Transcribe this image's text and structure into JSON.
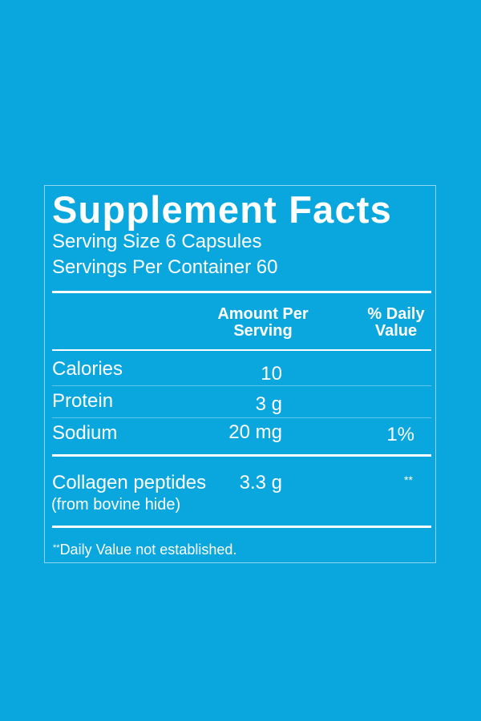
{
  "title": "Supplement Facts",
  "serving_size": "Serving Size 6 Capsules",
  "servings_per_container": "Servings Per Container 60",
  "headers": {
    "amount_line1": "Amount Per",
    "amount_line2": "Serving",
    "dv_line1": "% Daily",
    "dv_line2": "Value"
  },
  "rows": [
    {
      "name": "Calories",
      "amount": "10",
      "dv": ""
    },
    {
      "name": "Protein",
      "amount": "3 g",
      "dv": ""
    },
    {
      "name": "Sodium",
      "amount": "20 mg",
      "dv": "1%"
    }
  ],
  "collagen": {
    "name": "Collagen peptides",
    "source": "(from bovine hide)",
    "amount": "3.3 g",
    "dv": "**"
  },
  "footnote": {
    "mark": "**",
    "text": "Daily Value not established."
  },
  "colors": {
    "background": "#0aa7de",
    "text": "#ffffff"
  }
}
